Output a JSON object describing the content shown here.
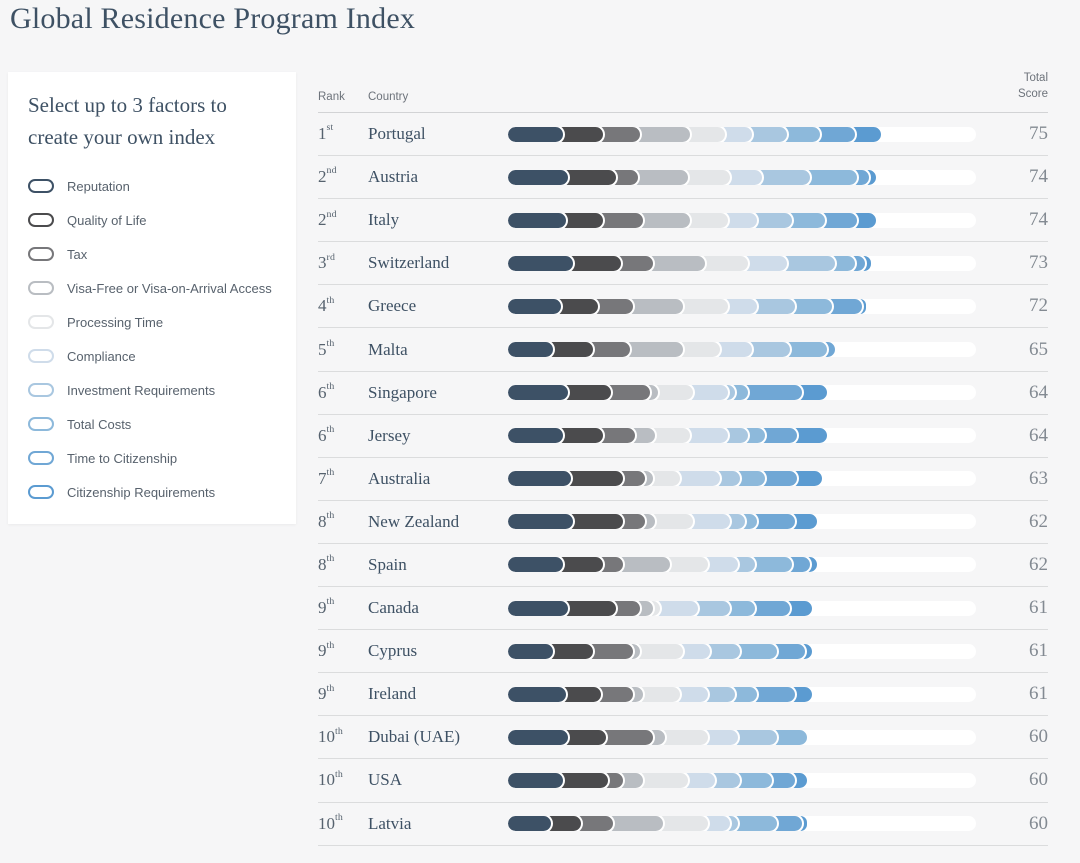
{
  "page": {
    "title": "Global Residence Program Index",
    "background": "#f6f6f7"
  },
  "sidebar": {
    "heading": "Select up to 3 factors to create your own index",
    "factors": [
      {
        "label": "Reputation",
        "color": "#3d5166",
        "icon": "pill-outline-icon"
      },
      {
        "label": "Quality of Life",
        "color": "#4b4b4d",
        "icon": "pill-outline-icon"
      },
      {
        "label": "Tax",
        "color": "#77777a",
        "icon": "pill-outline-icon"
      },
      {
        "label": "Visa-Free or Visa-on-Arrival Access",
        "color": "#b9bdc2",
        "icon": "pill-outline-icon"
      },
      {
        "label": "Processing Time",
        "color": "#e4e6e8",
        "icon": "pill-outline-icon"
      },
      {
        "label": "Compliance",
        "color": "#cfdcea",
        "icon": "pill-outline-icon"
      },
      {
        "label": "Investment Requirements",
        "color": "#a9c7e0",
        "icon": "pill-outline-icon"
      },
      {
        "label": "Total Costs",
        "color": "#8db9db",
        "icon": "pill-outline-icon"
      },
      {
        "label": "Time to Citizenship",
        "color": "#70a7d5",
        "icon": "pill-outline-icon"
      },
      {
        "label": "Citizenship Requirements",
        "color": "#5b9bd1",
        "icon": "pill-outline-icon"
      }
    ]
  },
  "table": {
    "headers": {
      "rank": "Rank",
      "country": "Country",
      "total_score": "Total\nScore"
    }
  },
  "chart_data": {
    "type": "bar",
    "stacked": true,
    "orientation": "horizontal",
    "title": "Global Residence Program Index",
    "xlim": [
      0,
      94
    ],
    "grid": false,
    "legend_position": "left-panel",
    "series_labels": [
      "Reputation",
      "Quality of Life",
      "Tax",
      "Visa-Free or Visa-on-Arrival Access",
      "Processing Time",
      "Compliance",
      "Investment Requirements",
      "Total Costs",
      "Time to Citizenship",
      "Citizenship Requirements"
    ],
    "series_colors": [
      "#3d5166",
      "#4b4b4d",
      "#77777a",
      "#b9bdc2",
      "#e4e6e8",
      "#cfdcea",
      "#a9c7e0",
      "#8db9db",
      "#70a7d5",
      "#5b9bd1"
    ],
    "rows": [
      {
        "rank": "1st",
        "country": "Portugal",
        "total": 75,
        "segments": [
          9.5,
          8,
          7.5,
          10,
          7,
          5.5,
          7,
          6.5,
          7,
          7
        ]
      },
      {
        "rank": "2nd",
        "country": "Austria",
        "total": 74,
        "segments": [
          10.5,
          9.5,
          4.5,
          10,
          8.5,
          6.5,
          9.5,
          9.5,
          2.5,
          3
        ]
      },
      {
        "rank": "2nd",
        "country": "Italy",
        "total": 74,
        "segments": [
          10,
          7.5,
          8,
          9.5,
          7.5,
          6,
          7,
          6.5,
          6.5,
          5.5
        ]
      },
      {
        "rank": "3rd",
        "country": "Switzerland",
        "total": 73,
        "segments": [
          11.5,
          9.5,
          6.5,
          10.5,
          8.5,
          8,
          9.5,
          4,
          2,
          3
        ]
      },
      {
        "rank": "4th",
        "country": "Greece",
        "total": 72,
        "segments": [
          9,
          7.5,
          7,
          10,
          9,
          6,
          7.5,
          7.5,
          6,
          2.5
        ]
      },
      {
        "rank": "5th",
        "country": "Malta",
        "total": 65,
        "segments": [
          7.5,
          8,
          7.5,
          10.5,
          7.5,
          6.5,
          7.5,
          7.5,
          1.5,
          1
        ]
      },
      {
        "rank": "6th",
        "country": "Singapore",
        "total": 64,
        "segments": [
          10.5,
          8.5,
          8,
          1.5,
          7,
          7,
          1.5,
          2.5,
          11,
          6.5
        ]
      },
      {
        "rank": "6th",
        "country": "Jersey",
        "total": 64,
        "segments": [
          9.5,
          8,
          6.5,
          4,
          7,
          7.5,
          4,
          3.5,
          6.5,
          7.5
        ]
      },
      {
        "rank": "7th",
        "country": "Australia",
        "total": 63,
        "segments": [
          11,
          10.5,
          4.5,
          1.5,
          5.5,
          8,
          4,
          5,
          6.5,
          6.5
        ]
      },
      {
        "rank": "8th",
        "country": "New Zealand",
        "total": 62,
        "segments": [
          11.5,
          10,
          4.5,
          2,
          7.5,
          7.5,
          3,
          2.5,
          7.5,
          6
        ]
      },
      {
        "rank": "8th",
        "country": "Spain",
        "total": 62,
        "segments": [
          9.5,
          8,
          4,
          9.5,
          7.5,
          6,
          3.5,
          7.5,
          3.5,
          3
        ]
      },
      {
        "rank": "9th",
        "country": "Canada",
        "total": 61,
        "segments": [
          10.5,
          9.5,
          5,
          2.5,
          1.5,
          7.5,
          6.5,
          5,
          7,
          6
        ]
      },
      {
        "rank": "9th",
        "country": "Cyprus",
        "total": 61,
        "segments": [
          7.5,
          8,
          8,
          1.5,
          8.5,
          5.5,
          6,
          7.5,
          5.5,
          3
        ]
      },
      {
        "rank": "9th",
        "country": "Ireland",
        "total": 61,
        "segments": [
          10,
          7,
          6.5,
          2,
          7.5,
          5.5,
          5.5,
          4.5,
          7.5,
          5
        ]
      },
      {
        "rank": "10th",
        "country": "Dubai (UAE)",
        "total": 60,
        "segments": [
          10.5,
          7.5,
          9.5,
          2.5,
          8.5,
          6,
          8,
          7.5,
          0,
          0
        ]
      },
      {
        "rank": "10th",
        "country": "USA",
        "total": 60,
        "segments": [
          9.5,
          9,
          3,
          4,
          9,
          5.5,
          5,
          6.5,
          4.5,
          4
        ]
      },
      {
        "rank": "10th",
        "country": "Latvia",
        "total": 60,
        "segments": [
          7,
          6,
          6.5,
          10,
          9,
          4.5,
          1.5,
          8,
          5,
          2.5
        ]
      }
    ]
  }
}
